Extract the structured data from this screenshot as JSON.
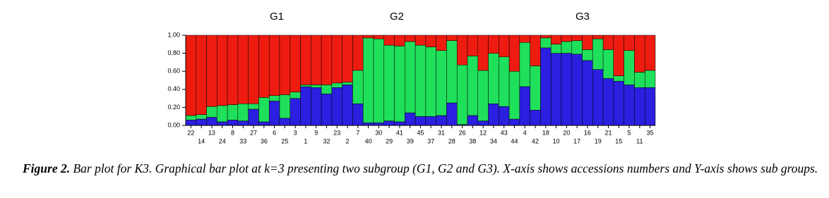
{
  "chart_data": {
    "type": "stacked_bar",
    "annotations": [
      "G1",
      "G2",
      "G3"
    ],
    "categories": [
      "22",
      "14",
      "13",
      "24",
      "8",
      "33",
      "27",
      "36",
      "6",
      "25",
      "3",
      "1",
      "9",
      "32",
      "23",
      "2",
      "7",
      "40",
      "30",
      "29",
      "41",
      "39",
      "45",
      "37",
      "31",
      "28",
      "26",
      "38",
      "12",
      "34",
      "43",
      "44",
      "4",
      "42",
      "18",
      "10",
      "20",
      "17",
      "16",
      "19",
      "21",
      "15",
      "5",
      "11",
      "35"
    ],
    "series": [
      {
        "color": "#2b1fe0",
        "values": [
          0.06,
          0.07,
          0.09,
          0.04,
          0.06,
          0.05,
          0.18,
          0.04,
          0.27,
          0.08,
          0.3,
          0.43,
          0.42,
          0.35,
          0.42,
          0.45,
          0.24,
          0.03,
          0.03,
          0.05,
          0.04,
          0.14,
          0.1,
          0.1,
          0.11,
          0.25,
          0.01,
          0.11,
          0.05,
          0.24,
          0.21,
          0.07,
          0.43,
          0.17,
          0.86,
          0.8,
          0.8,
          0.79,
          0.72,
          0.62,
          0.52,
          0.49,
          0.45,
          0.42,
          0.42
        ]
      },
      {
        "color": "#1fe05a",
        "values": [
          0.05,
          0.05,
          0.12,
          0.18,
          0.17,
          0.19,
          0.06,
          0.27,
          0.06,
          0.26,
          0.07,
          0.02,
          0.03,
          0.1,
          0.05,
          0.03,
          0.37,
          0.94,
          0.93,
          0.84,
          0.84,
          0.79,
          0.79,
          0.77,
          0.72,
          0.69,
          0.66,
          0.66,
          0.56,
          0.56,
          0.55,
          0.53,
          0.49,
          0.49,
          0.11,
          0.1,
          0.13,
          0.15,
          0.12,
          0.34,
          0.32,
          0.06,
          0.38,
          0.17,
          0.19
        ]
      },
      {
        "color": "#ee1c10",
        "values": [
          0.89,
          0.88,
          0.79,
          0.78,
          0.77,
          0.76,
          0.76,
          0.69,
          0.67,
          0.66,
          0.63,
          0.55,
          0.55,
          0.55,
          0.53,
          0.52,
          0.39,
          0.03,
          0.04,
          0.11,
          0.12,
          0.07,
          0.11,
          0.13,
          0.17,
          0.06,
          0.33,
          0.23,
          0.39,
          0.2,
          0.24,
          0.4,
          0.08,
          0.34,
          0.03,
          0.1,
          0.07,
          0.06,
          0.16,
          0.04,
          0.16,
          0.45,
          0.17,
          0.41,
          0.39
        ]
      }
    ],
    "ylim": [
      0,
      1
    ],
    "yticks": [
      {
        "value": 0,
        "label": "0.00"
      },
      {
        "value": 0.2,
        "label": "0.20"
      },
      {
        "value": 0.4,
        "label": "0.40"
      },
      {
        "value": 0.6,
        "label": "0.60"
      },
      {
        "value": 0.8,
        "label": "0.80"
      },
      {
        "value": 1,
        "label": "1.00"
      }
    ],
    "caption": {
      "label": "Figure 2.",
      "text": "Bar plot for K3. Graphical bar plot at k=3 presenting two subgroup (G1, G2 and G3). X-axis shows accessions numbers and Y-axis shows sub groups."
    }
  }
}
